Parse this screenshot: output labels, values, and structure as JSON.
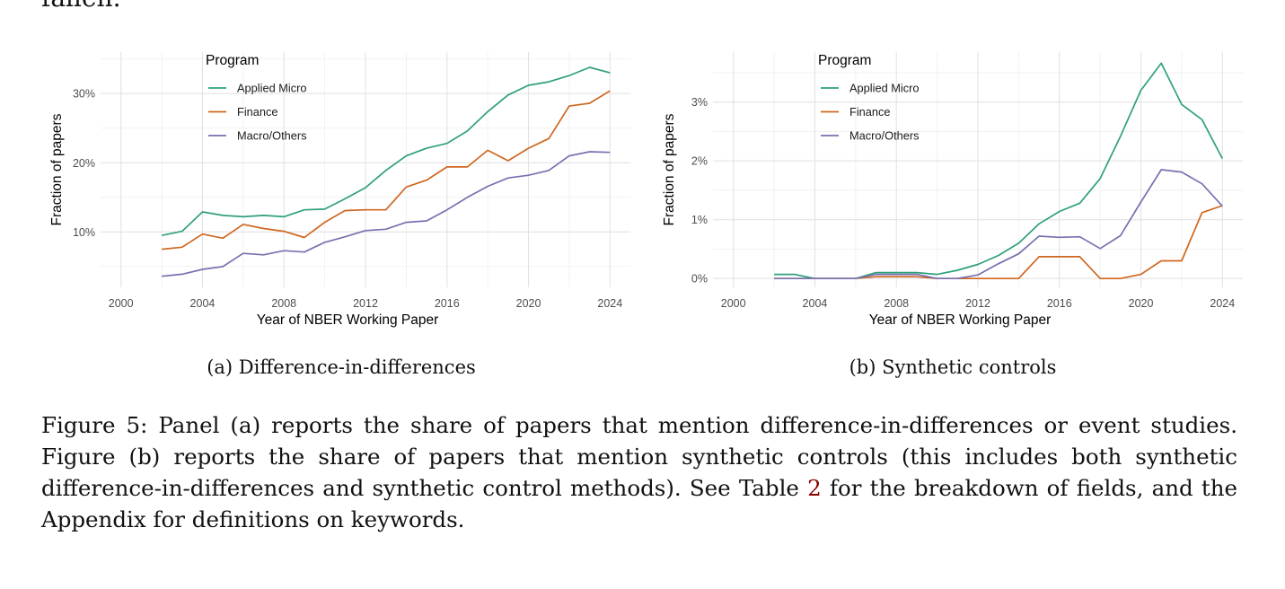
{
  "top_fragment": "fallen.",
  "chart_data": [
    {
      "type": "line",
      "panel": "(a)",
      "title": "",
      "xlabel": "Year of NBER Working Paper",
      "ylabel": "Fraction of papers",
      "legend_title": "Program",
      "legend_position": "top-left",
      "grid": true,
      "xlim": [
        1999,
        2025
      ],
      "ylim": [
        2,
        36
      ],
      "xticks": [
        2000,
        2004,
        2008,
        2012,
        2016,
        2020,
        2024
      ],
      "xtick_labels": [
        "2000",
        "2004",
        "2008",
        "2012",
        "2016",
        "2020",
        "2024"
      ],
      "yticks": [
        10,
        20,
        30
      ],
      "ytick_labels": [
        "10%",
        "20%",
        "30%"
      ],
      "x": [
        2002,
        2003,
        2004,
        2005,
        2006,
        2007,
        2008,
        2009,
        2010,
        2011,
        2012,
        2013,
        2014,
        2015,
        2016,
        2017,
        2018,
        2019,
        2020,
        2021,
        2022,
        2023,
        2024
      ],
      "series": [
        {
          "name": "Applied Micro",
          "color": "#2fa07c",
          "values": [
            9.5,
            10.1,
            12.9,
            12.4,
            12.2,
            12.4,
            12.2,
            13.2,
            13.3,
            14.8,
            16.4,
            18.9,
            21.0,
            22.1,
            22.8,
            24.6,
            27.4,
            29.8,
            31.2,
            31.7,
            32.6,
            33.8,
            33.0
          ]
        },
        {
          "name": "Finance",
          "color": "#d0661f",
          "values": [
            7.5,
            7.8,
            9.7,
            9.1,
            11.1,
            10.5,
            10.1,
            9.2,
            11.4,
            13.1,
            13.2,
            13.2,
            16.5,
            17.5,
            19.4,
            19.4,
            21.8,
            20.3,
            22.1,
            23.5,
            28.2,
            28.6,
            30.4
          ]
        },
        {
          "name": "Macro/Others",
          "color": "#7870b0",
          "values": [
            3.6,
            3.9,
            4.6,
            5.0,
            6.9,
            6.7,
            7.3,
            7.1,
            8.5,
            9.3,
            10.2,
            10.4,
            11.4,
            11.6,
            13.2,
            15.0,
            16.6,
            17.8,
            18.2,
            18.9,
            21.0,
            21.6,
            21.5
          ]
        }
      ],
      "subcaption": "(a) Difference-in-differences"
    },
    {
      "type": "line",
      "panel": "(b)",
      "title": "",
      "xlabel": "Year of NBER Working Paper",
      "ylabel": "Fraction of papers",
      "legend_title": "Program",
      "legend_position": "top-left",
      "grid": true,
      "xlim": [
        1999,
        2025
      ],
      "ylim": [
        -0.15,
        3.85
      ],
      "xticks": [
        2000,
        2004,
        2008,
        2012,
        2016,
        2020,
        2024
      ],
      "xtick_labels": [
        "2000",
        "2004",
        "2008",
        "2012",
        "2016",
        "2020",
        "2024"
      ],
      "yticks": [
        0,
        1,
        2,
        3
      ],
      "ytick_labels": [
        "0%",
        "1%",
        "2%",
        "3%"
      ],
      "x": [
        2002,
        2003,
        2004,
        2005,
        2006,
        2007,
        2008,
        2009,
        2010,
        2011,
        2012,
        2013,
        2014,
        2015,
        2016,
        2017,
        2018,
        2019,
        2020,
        2021,
        2022,
        2023,
        2024
      ],
      "series": [
        {
          "name": "Applied Micro",
          "color": "#2fa07c",
          "values": [
            0.07,
            0.07,
            0.0,
            0.0,
            0.0,
            0.1,
            0.1,
            0.1,
            0.07,
            0.14,
            0.24,
            0.39,
            0.6,
            0.93,
            1.14,
            1.28,
            1.7,
            2.42,
            3.2,
            3.66,
            2.96,
            2.7,
            2.04
          ]
        },
        {
          "name": "Finance",
          "color": "#d0661f",
          "values": [
            0.0,
            0.0,
            0.0,
            0.0,
            0.0,
            0.03,
            0.03,
            0.03,
            0.0,
            0.0,
            0.0,
            0.0,
            0.0,
            0.37,
            0.37,
            0.37,
            0.0,
            0.0,
            0.07,
            0.3,
            0.3,
            1.12,
            1.24
          ]
        },
        {
          "name": "Macro/Others",
          "color": "#7870b0",
          "values": [
            0.0,
            0.0,
            0.0,
            0.0,
            0.0,
            0.07,
            0.07,
            0.07,
            0.0,
            0.0,
            0.06,
            0.25,
            0.42,
            0.72,
            0.7,
            0.71,
            0.51,
            0.73,
            1.3,
            1.85,
            1.81,
            1.61,
            1.23
          ]
        }
      ],
      "subcaption": "(b) Synthetic controls"
    }
  ],
  "caption": {
    "part1": "Figure 5: Panel (a) reports the share of papers that mention difference-in-differences or event studies. Figure (b) reports the share of papers that mention synthetic controls (this includes both synthetic difference-in-differences and synthetic control methods). See Table ",
    "ref": "2",
    "part2": " for the breakdown of fields, and the Appendix for definitions on keywords."
  }
}
